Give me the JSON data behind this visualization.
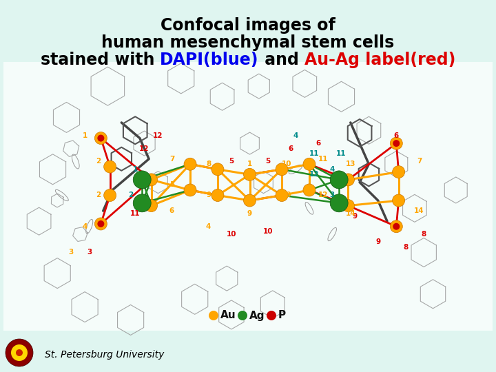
{
  "background_color": "#dff5f0",
  "title_line1": "Confocal images of",
  "title_line2": "human mesenchymal stem cells",
  "title_line3_parts": [
    {
      "text": "stained with ",
      "color": "#000000"
    },
    {
      "text": "DAPI(blue)",
      "color": "#0000ee"
    },
    {
      "text": " and ",
      "color": "#000000"
    },
    {
      "text": "Au-Ag label(red)",
      "color": "#dd0000"
    }
  ],
  "title_color": "#000000",
  "title_fontsize": 17,
  "title_font": "Comic Sans MS",
  "legend_items": [
    {
      "dot_color": "#FFA500",
      "label": "Au"
    },
    {
      "dot_color": "#228B22",
      "label": "Ag"
    },
    {
      "dot_color": "#cc0000",
      "label": "P"
    }
  ],
  "legend_fontsize": 11,
  "footer_text": "St. Petersburg University",
  "footer_fontsize": 10
}
